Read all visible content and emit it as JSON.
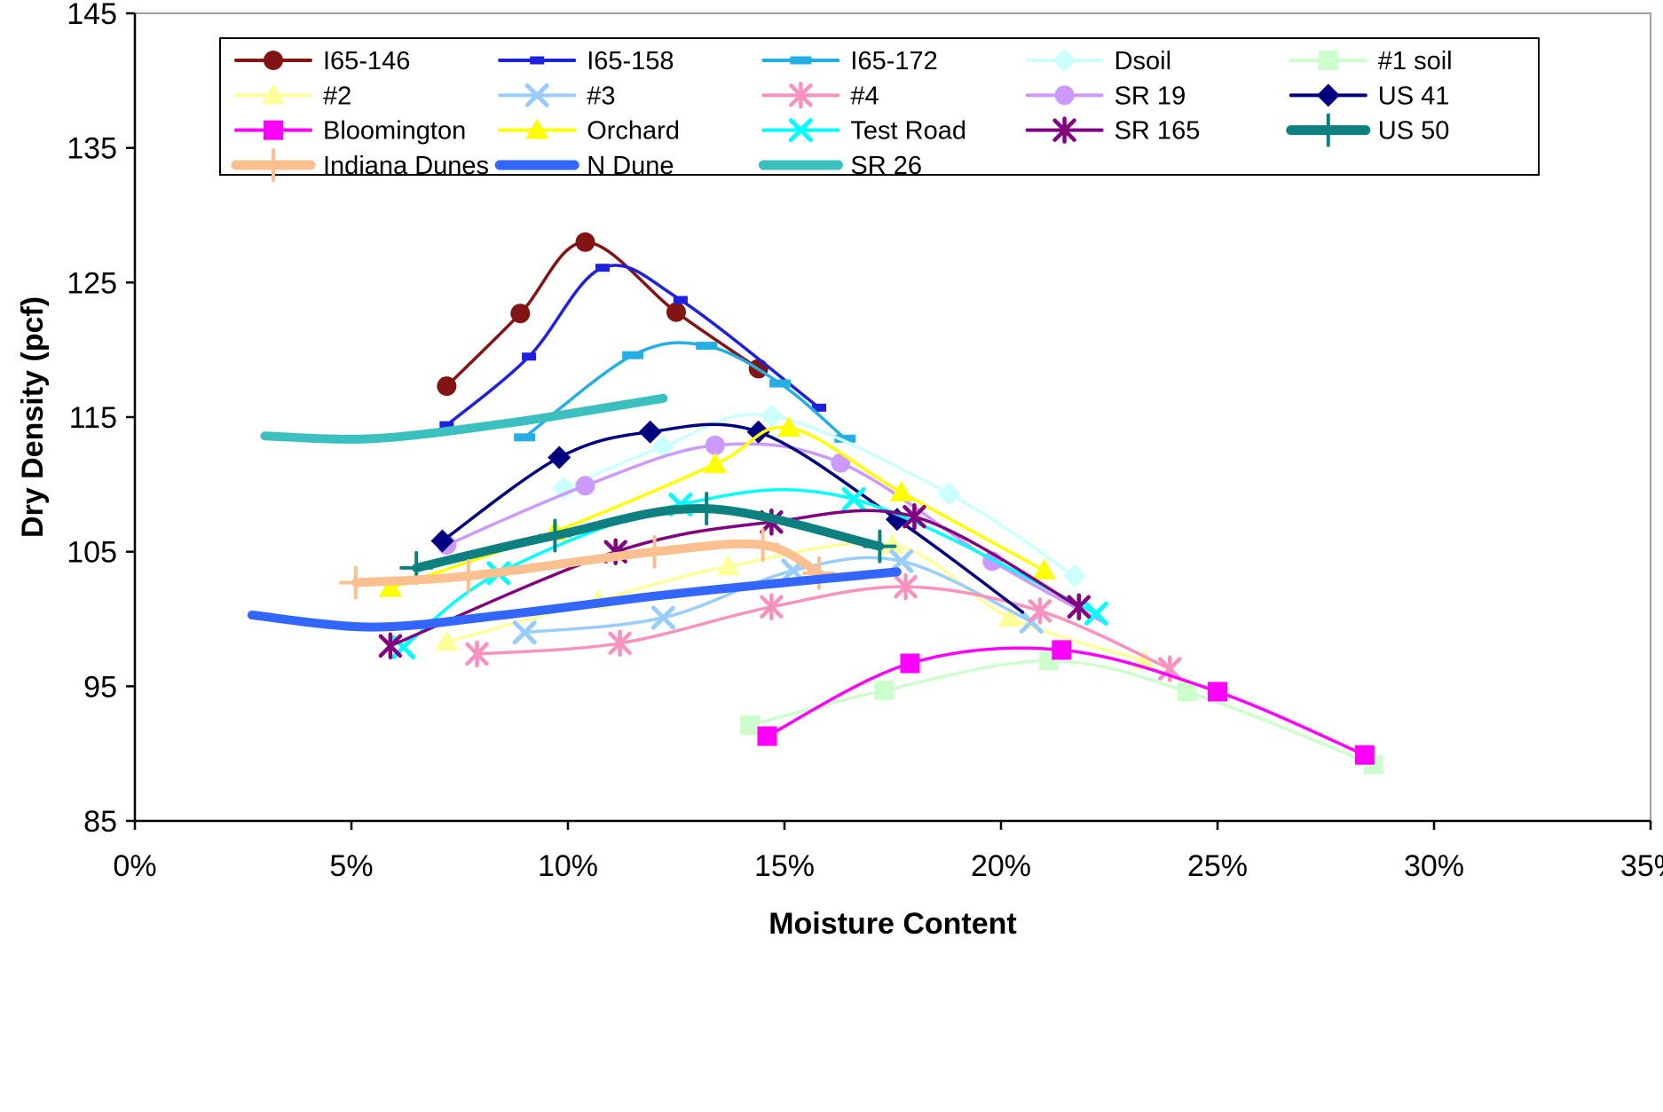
{
  "page": {
    "background": "#ffffff"
  },
  "chart_data": {
    "type": "line",
    "title": "",
    "xlabel": "Moisture Content",
    "ylabel": "Dry Density (pcf)",
    "xlim": [
      0,
      35
    ],
    "ylim": [
      85,
      145
    ],
    "x_tick_values": [
      0,
      5,
      10,
      15,
      20,
      25,
      30,
      35
    ],
    "x_tick_labels": [
      "0%",
      "5%",
      "10%",
      "15%",
      "20%",
      "25%",
      "30%",
      "35%"
    ],
    "y_tick_values": [
      85,
      95,
      105,
      115,
      125,
      135,
      145
    ],
    "y_tick_labels": [
      "85",
      "95",
      "105",
      "115",
      "125",
      "135",
      "145"
    ],
    "grid": false,
    "legend_position": "top-inside",
    "legend_columns": 5,
    "axis_color": "#000000",
    "frame_color": "#a0a0a0",
    "series": [
      {
        "name": "I65-146",
        "color": "#821414",
        "marker": "circle",
        "thick": false,
        "points": [
          [
            7.2,
            117.3
          ],
          [
            8.9,
            122.7
          ],
          [
            10.4,
            128.0
          ],
          [
            12.5,
            122.8
          ],
          [
            14.4,
            118.6
          ]
        ]
      },
      {
        "name": "I65-158",
        "color": "#1f1fe0",
        "marker": "sdash",
        "thick": false,
        "points": [
          [
            7.2,
            114.4
          ],
          [
            9.1,
            119.5
          ],
          [
            10.8,
            126.1
          ],
          [
            12.6,
            123.7
          ],
          [
            15.8,
            115.7
          ]
        ]
      },
      {
        "name": "I65-172",
        "color": "#25aee4",
        "marker": "dash",
        "thick": false,
        "points": [
          [
            9.0,
            113.5
          ],
          [
            11.5,
            119.6
          ],
          [
            13.2,
            120.3
          ],
          [
            14.9,
            117.5
          ],
          [
            16.4,
            113.4
          ]
        ]
      },
      {
        "name": "Dsoil",
        "color": "#ccffff",
        "marker": "diamond",
        "thick": false,
        "points": [
          [
            9.9,
            109.7
          ],
          [
            12.2,
            112.8
          ],
          [
            14.7,
            115.1
          ],
          [
            18.8,
            109.3
          ],
          [
            21.7,
            103.2
          ]
        ]
      },
      {
        "name": "#1 soil",
        "color": "#ccffcc",
        "marker": "square",
        "thick": false,
        "points": [
          [
            14.2,
            92.1
          ],
          [
            17.3,
            94.7
          ],
          [
            21.1,
            96.9
          ],
          [
            24.3,
            94.6
          ],
          [
            28.6,
            89.2
          ]
        ]
      },
      {
        "name": "#2",
        "color": "#ffff99",
        "marker": "triangle",
        "thick": false,
        "points": [
          [
            7.2,
            98.3
          ],
          [
            10.7,
            101.4
          ],
          [
            13.7,
            103.9
          ],
          [
            17.5,
            105.5
          ],
          [
            20.2,
            100.1
          ],
          [
            23.3,
            96.9
          ]
        ]
      },
      {
        "name": "#3",
        "color": "#99ccff",
        "marker": "x",
        "thick": false,
        "points": [
          [
            9.0,
            99.0
          ],
          [
            12.2,
            100.1
          ],
          [
            15.2,
            103.6
          ],
          [
            17.7,
            104.3
          ],
          [
            20.7,
            99.8
          ]
        ]
      },
      {
        "name": "#4",
        "color": "#fa92c0",
        "marker": "asterisk",
        "thick": false,
        "points": [
          [
            7.9,
            97.4
          ],
          [
            11.2,
            98.2
          ],
          [
            14.7,
            100.9
          ],
          [
            17.8,
            102.4
          ],
          [
            20.9,
            100.6
          ],
          [
            23.9,
            96.3
          ]
        ]
      },
      {
        "name": "SR 19",
        "color": "#cc99ff",
        "marker": "circle",
        "thick": false,
        "points": [
          [
            7.2,
            105.5
          ],
          [
            10.4,
            109.9
          ],
          [
            13.4,
            112.9
          ],
          [
            16.3,
            111.6
          ],
          [
            19.8,
            104.3
          ]
        ],
        "tail": [
          22.4,
          99.7
        ]
      },
      {
        "name": "US 41",
        "color": "#000080",
        "marker": "diamond",
        "thick": false,
        "points": [
          [
            7.1,
            105.8
          ],
          [
            9.8,
            112.0
          ],
          [
            11.9,
            113.9
          ],
          [
            14.4,
            113.9
          ],
          [
            17.6,
            107.4
          ]
        ],
        "tail": [
          20.5,
          100.5
        ]
      },
      {
        "name": "Bloomington",
        "color": "#ff00ff",
        "marker": "square",
        "thick": false,
        "points": [
          [
            14.6,
            91.3
          ],
          [
            17.9,
            96.7
          ],
          [
            21.4,
            97.7
          ],
          [
            25.0,
            94.6
          ],
          [
            28.4,
            89.9
          ]
        ]
      },
      {
        "name": "Orchard",
        "color": "#ffff00",
        "marker": "triangle",
        "thick": false,
        "points": [
          [
            5.9,
            102.3
          ],
          [
            9.7,
            106.5
          ],
          [
            13.4,
            111.5
          ],
          [
            15.1,
            114.2
          ],
          [
            17.7,
            109.4
          ],
          [
            21.0,
            103.6
          ]
        ]
      },
      {
        "name": "Test Road",
        "color": "#00ffff",
        "marker": "x",
        "thick": false,
        "points": [
          [
            6.2,
            97.9
          ],
          [
            8.4,
            103.4
          ],
          [
            12.6,
            108.5
          ],
          [
            16.6,
            108.9
          ],
          [
            22.2,
            100.4
          ]
        ]
      },
      {
        "name": "SR 165",
        "color": "#800080",
        "marker": "asterisk",
        "thick": false,
        "points": [
          [
            5.9,
            98.0
          ],
          [
            11.1,
            105.0
          ],
          [
            14.7,
            107.2
          ],
          [
            18.0,
            107.6
          ],
          [
            21.8,
            100.9
          ]
        ]
      },
      {
        "name": "US 50",
        "color": "#0e8080",
        "marker": "plus",
        "thick": true,
        "points": [
          [
            6.5,
            103.8
          ],
          [
            9.7,
            106.2
          ],
          [
            13.2,
            108.2
          ],
          [
            17.2,
            105.4
          ]
        ]
      },
      {
        "name": "Indiana Dunes",
        "color": "#fac090",
        "marker": "plus",
        "thick": true,
        "points": [
          [
            5.1,
            102.7
          ],
          [
            7.7,
            103.2
          ],
          [
            12.0,
            105.0
          ],
          [
            14.5,
            105.5
          ],
          [
            15.8,
            103.4
          ]
        ]
      },
      {
        "name": "N Dune",
        "color": "#3366ff",
        "marker": "none",
        "thick": true,
        "points": [
          [
            2.7,
            100.3
          ],
          [
            5.5,
            99.4
          ],
          [
            8.5,
            100.3
          ],
          [
            12.0,
            101.7
          ],
          [
            15.0,
            102.7
          ],
          [
            17.6,
            103.5
          ]
        ]
      },
      {
        "name": "SR 26",
        "color": "#3cbfbf",
        "marker": "none",
        "thick": true,
        "points": [
          [
            3.0,
            113.6
          ],
          [
            5.5,
            113.4
          ],
          [
            8.5,
            114.5
          ],
          [
            10.5,
            115.5
          ],
          [
            12.2,
            116.4
          ]
        ]
      }
    ]
  }
}
